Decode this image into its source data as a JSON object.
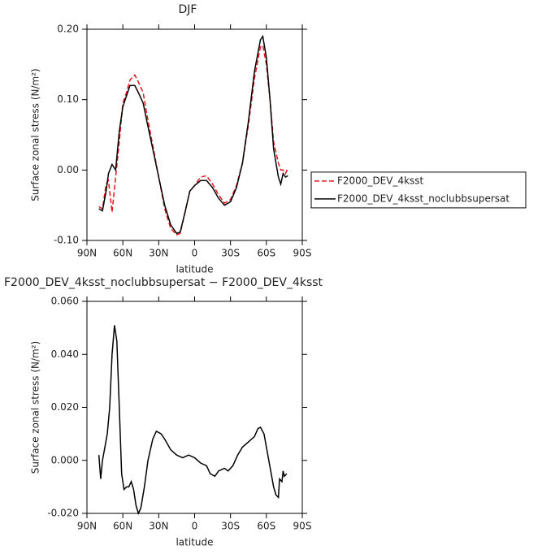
{
  "chart_data": [
    {
      "type": "line",
      "title": "DJF",
      "xlabel": "latitude",
      "ylabel": "Surface zonal stress (N/m²)",
      "xlim": [
        90,
        -90
      ],
      "xticks": [
        {
          "value": 90,
          "label": "90N"
        },
        {
          "value": 60,
          "label": "60N"
        },
        {
          "value": 30,
          "label": "30N"
        },
        0,
        {
          "value": -30,
          "label": "30S"
        },
        {
          "value": -60,
          "label": "60S"
        },
        {
          "value": -90,
          "label": "90S"
        }
      ],
      "ylim": [
        -0.1,
        0.2
      ],
      "yticks": [
        {
          "value": -0.1,
          "label": "-0.10"
        },
        {
          "value": 0,
          "label": "0.00"
        },
        {
          "value": 0.1,
          "label": "0.10"
        },
        {
          "value": 0.2,
          "label": "0.20"
        }
      ],
      "legend": "right",
      "x": [
        80,
        77,
        74,
        72,
        69,
        66,
        63,
        60,
        57,
        54,
        50,
        47,
        43,
        40,
        35,
        30,
        25,
        20,
        15,
        12,
        8,
        4,
        0,
        -5,
        -10,
        -15,
        -20,
        -25,
        -30,
        -35,
        -40,
        -45,
        -50,
        -55,
        -57,
        -60,
        -63,
        -66,
        -70,
        -72,
        -74,
        -76,
        -78
      ],
      "series": [
        {
          "name": "F2000_DEV_4ksst",
          "color": "#e8141e",
          "linestyle": "dashed",
          "values": [
            -0.052,
            -0.055,
            -0.02,
            -0.015,
            -0.06,
            -0.01,
            0.04,
            0.095,
            0.11,
            0.128,
            0.135,
            0.125,
            0.11,
            0.08,
            0.035,
            -0.01,
            -0.055,
            -0.083,
            -0.092,
            -0.09,
            -0.06,
            -0.03,
            -0.022,
            -0.01,
            -0.008,
            -0.02,
            -0.035,
            -0.047,
            -0.042,
            -0.022,
            0.01,
            0.065,
            0.13,
            0.175,
            0.177,
            0.15,
            0.1,
            0.04,
            0.01,
            0.0,
            0.0,
            -0.005,
            0.003
          ]
        },
        {
          "name": "F2000_DEV_4ksst_noclubbsupersat",
          "color": "#000000",
          "linestyle": "solid",
          "values": [
            -0.055,
            -0.058,
            -0.03,
            -0.005,
            0.008,
            0.0,
            0.055,
            0.09,
            0.105,
            0.12,
            0.12,
            0.11,
            0.095,
            0.07,
            0.03,
            -0.01,
            -0.05,
            -0.078,
            -0.09,
            -0.088,
            -0.06,
            -0.03,
            -0.022,
            -0.015,
            -0.015,
            -0.025,
            -0.04,
            -0.05,
            -0.045,
            -0.025,
            0.01,
            0.07,
            0.14,
            0.185,
            0.19,
            0.16,
            0.1,
            0.03,
            -0.01,
            -0.02,
            -0.005,
            -0.01,
            -0.008
          ]
        }
      ]
    },
    {
      "type": "line",
      "title": "F2000_DEV_4ksst_noclubbsupersat − F2000_DEV_4ksst",
      "xlabel": "latitude",
      "ylabel": "Surface zonal stress (N/m²)",
      "xlim": [
        90,
        -90
      ],
      "xticks": [
        {
          "value": 90,
          "label": "90N"
        },
        {
          "value": 60,
          "label": "60N"
        },
        {
          "value": 30,
          "label": "30N"
        },
        0,
        {
          "value": -30,
          "label": "30S"
        },
        {
          "value": -60,
          "label": "60S"
        },
        {
          "value": -90,
          "label": "90S"
        }
      ],
      "ylim": [
        -0.02,
        0.06
      ],
      "yticks": [
        {
          "value": -0.02,
          "label": "-0.020"
        },
        {
          "value": 0,
          "label": "0.000"
        },
        {
          "value": 0.02,
          "label": "0.020"
        },
        {
          "value": 0.04,
          "label": "0.040"
        },
        {
          "value": 0.06,
          "label": "0.060"
        }
      ],
      "x": [
        80,
        78.5,
        77,
        75,
        73,
        71,
        69,
        67,
        65,
        63,
        61,
        59,
        57,
        55,
        53,
        51,
        49,
        47,
        45,
        42,
        39,
        35,
        32,
        28,
        25,
        20,
        15,
        10,
        5,
        0,
        -5,
        -10,
        -13,
        -17,
        -20,
        -25,
        -28,
        -32,
        -36,
        -40,
        -45,
        -50,
        -53,
        -55,
        -58,
        -62,
        -66,
        -68,
        -70,
        -71,
        -73,
        -74,
        -75,
        -77
      ],
      "series": [
        {
          "color": "#000000",
          "linestyle": "solid",
          "values": [
            0.002,
            -0.007,
            0.0,
            0.005,
            0.01,
            0.02,
            0.04,
            0.051,
            0.045,
            0.02,
            -0.005,
            -0.011,
            -0.01,
            -0.01,
            -0.008,
            -0.011,
            -0.017,
            -0.02,
            -0.018,
            -0.01,
            0.0,
            0.008,
            0.011,
            0.01,
            0.008,
            0.004,
            0.002,
            0.001,
            0.002,
            0.001,
            -0.001,
            -0.002,
            -0.005,
            -0.006,
            -0.004,
            -0.003,
            -0.004,
            -0.002,
            0.002,
            0.005,
            0.007,
            0.009,
            0.012,
            0.0125,
            0.01,
            0.0,
            -0.01,
            -0.013,
            -0.014,
            -0.007,
            -0.008,
            -0.004,
            -0.006,
            -0.005
          ]
        }
      ]
    }
  ]
}
